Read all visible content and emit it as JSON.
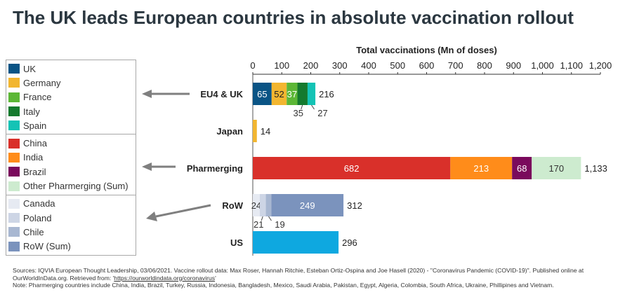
{
  "title": "The UK leads European countries in absolute vaccination rollout",
  "legend": {
    "groups": [
      [
        {
          "label": "UK",
          "color": "#0a5485"
        },
        {
          "label": "Germany",
          "color": "#f2b630"
        },
        {
          "label": "France",
          "color": "#5cb736"
        },
        {
          "label": "Italy",
          "color": "#147a2e"
        },
        {
          "label": "Spain",
          "color": "#14c3b5"
        }
      ],
      [
        {
          "label": "China",
          "color": "#d9302a"
        },
        {
          "label": "India",
          "color": "#ff8c1a"
        },
        {
          "label": "Brazil",
          "color": "#7a0a5c"
        },
        {
          "label": "Other Pharmerging (Sum)",
          "color": "#cdebcf"
        }
      ],
      [
        {
          "label": "Canada",
          "color": "#e6eaf2"
        },
        {
          "label": "Poland",
          "color": "#cdd5e5"
        },
        {
          "label": "Chile",
          "color": "#a8b7d1"
        },
        {
          "label": "RoW (Sum)",
          "color": "#7b93bd"
        }
      ]
    ]
  },
  "chart_data": {
    "type": "bar",
    "orientation": "horizontal",
    "stacked": true,
    "title": "The UK leads European countries in absolute vaccination rollout",
    "xlabel": "Total vaccinations (Mn of doses)",
    "xlim": [
      0,
      1200
    ],
    "ticks": [
      "0",
      "100",
      "200",
      "300",
      "400",
      "500",
      "600",
      "700",
      "800",
      "900",
      "1,000",
      "1,100",
      "1,200"
    ],
    "tick_values": [
      0,
      100,
      200,
      300,
      400,
      500,
      600,
      700,
      800,
      900,
      1000,
      1100,
      1200
    ],
    "categories": [
      "EU4 & UK",
      "Japan",
      "Pharmerging",
      "RoW",
      "US"
    ],
    "bars": [
      {
        "category": "EU4 & UK",
        "total": 216,
        "total_label": "216",
        "segments": [
          {
            "name": "UK",
            "value": 65,
            "color": "#0a5485",
            "label": "65",
            "label_pos": "inside",
            "label_color": "#ffffff"
          },
          {
            "name": "Germany",
            "value": 52,
            "color": "#f2b630",
            "label": "52",
            "label_pos": "inside",
            "label_color": "#222222"
          },
          {
            "name": "France",
            "value": 37,
            "color": "#5cb736",
            "label": "37",
            "label_pos": "inside",
            "label_color": "#ffffff"
          },
          {
            "name": "Italy",
            "value": 35,
            "color": "#147a2e",
            "label": "35",
            "label_pos": "below",
            "label_color": "#333333"
          },
          {
            "name": "Spain",
            "value": 27,
            "color": "#14c3b5",
            "label": "27",
            "label_pos": "below",
            "label_color": "#333333"
          }
        ]
      },
      {
        "category": "Japan",
        "total": 14,
        "total_label": "14",
        "segments": [
          {
            "name": "Japan",
            "value": 14,
            "color": "#f2b630",
            "label": "",
            "label_pos": "none",
            "label_color": "#222222"
          }
        ]
      },
      {
        "category": "Pharmerging",
        "total": 1133,
        "total_label": "1,133",
        "segments": [
          {
            "name": "China",
            "value": 682,
            "color": "#d9302a",
            "label": "682",
            "label_pos": "inside",
            "label_color": "#ffffff"
          },
          {
            "name": "India",
            "value": 213,
            "color": "#ff8c1a",
            "label": "213",
            "label_pos": "inside",
            "label_color": "#ffffff"
          },
          {
            "name": "Brazil",
            "value": 68,
            "color": "#7a0a5c",
            "label": "68",
            "label_pos": "inside",
            "label_color": "#ffffff"
          },
          {
            "name": "Other Pharmerging (Sum)",
            "value": 170,
            "color": "#cdebcf",
            "label": "170",
            "label_pos": "inside",
            "label_color": "#333333"
          }
        ]
      },
      {
        "category": "RoW",
        "total": 312,
        "total_label": "312",
        "segments": [
          {
            "name": "Canada",
            "value": 24,
            "color": "#e6eaf2",
            "label": "24",
            "label_pos": "inside",
            "label_color": "#333333"
          },
          {
            "name": "Poland",
            "value": 21,
            "color": "#cdd5e5",
            "label": "21",
            "label_pos": "below",
            "label_color": "#333333"
          },
          {
            "name": "Chile",
            "value": 19,
            "color": "#a8b7d1",
            "label": "19",
            "label_pos": "below",
            "label_color": "#333333"
          },
          {
            "name": "RoW (Sum)",
            "value": 249,
            "color": "#7b93bd",
            "label": "249",
            "label_pos": "inside",
            "label_color": "#ffffff"
          }
        ]
      },
      {
        "category": "US",
        "total": 296,
        "total_label": "296",
        "segments": [
          {
            "name": "US",
            "value": 296,
            "color": "#0ea8e0",
            "label": "",
            "label_pos": "none",
            "label_color": "#222222"
          }
        ]
      }
    ],
    "grid": false,
    "legend_position": "left"
  },
  "sources": {
    "line1_prefix": "Sources: IQVIA European Thought Leadership, 03/06/2021. Vaccine rollout data: Max Roser, Hannah Ritchie, Esteban Ortiz-Ospina and Joe Hasell (2020) - \"Coronavirus Pandemic (COVID-19)\". Published online at OurWorldInData.org. Retrieved from: '",
    "link": "https://ourworldindata.org/coronavirus",
    "line1_suffix": "'",
    "note": "Note: Pharmerging countries include China, India, Brazil, Turkey, Russia, Indonesia, Bangladesh, Mexico, Saudi Arabia, Pakistan, Egypt, Algeria, Colombia, South Africa, Ukraine, Phillipines and Vietnam."
  }
}
